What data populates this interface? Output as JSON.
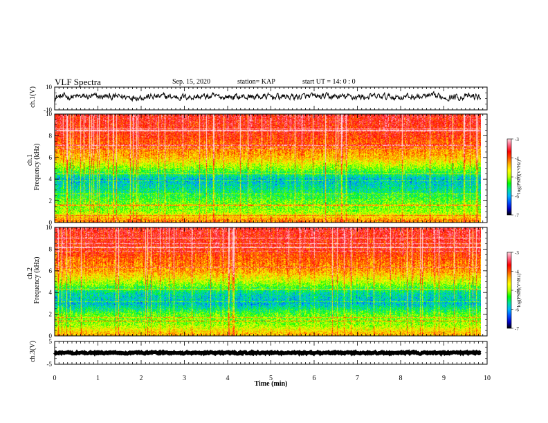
{
  "header": {
    "title": "VLF Spectra",
    "date": "Sep. 15, 2020",
    "station": "station= KAP",
    "start_ut": "start  UT  =   14: 0  : 0"
  },
  "colors": {
    "colormap": [
      "#000000",
      "#0000c8",
      "#0050ff",
      "#00b4ff",
      "#00e0a0",
      "#00ff00",
      "#b4ff00",
      "#ffff00",
      "#ffb400",
      "#ff5000",
      "#ff0000",
      "#ff6080",
      "#ffd8e0"
    ],
    "trace": "#000000"
  },
  "chart_data": [
    {
      "type": "line",
      "name": "ch1-waveform",
      "ylabel": "ch.1(V)",
      "ylim": [
        -10,
        10
      ],
      "yticks": [
        "10",
        "-10"
      ],
      "x_range_min": [
        0,
        9.85
      ],
      "baseline_value": 1.5,
      "fluctuation_amplitude": 5
    },
    {
      "type": "heatmap",
      "name": "ch1-spectrogram",
      "ylabel_channel": "ch.1",
      "ylabel": "Frequency (kHz)",
      "ylim": [
        0,
        10
      ],
      "yticks": [
        "0",
        "2",
        "4",
        "6",
        "8",
        "10"
      ],
      "x_range_min": [
        0,
        9.85
      ],
      "log_psd_by_frequency_khz": [
        [
          0.25,
          -4.2
        ],
        [
          1,
          -5.0
        ],
        [
          2,
          -5.2
        ],
        [
          3,
          -5.6
        ],
        [
          4,
          -5.9
        ],
        [
          5,
          -5.1
        ],
        [
          6,
          -4.4
        ],
        [
          8,
          -3.8
        ],
        [
          10,
          -3.6
        ]
      ],
      "colorbar": {
        "label": "log(PSD)(V²/Hz)",
        "range": [
          -7,
          -3
        ],
        "ticks": [
          "-3",
          "-4",
          "-5",
          "-6",
          "-7"
        ]
      }
    },
    {
      "type": "heatmap",
      "name": "ch2-spectrogram",
      "ylabel_channel": "ch.2",
      "ylabel": "Frequency (kHz)",
      "ylim": [
        0,
        10
      ],
      "yticks": [
        "0",
        "2",
        "4",
        "6",
        "8",
        "10"
      ],
      "x_range_min": [
        0,
        9.85
      ],
      "log_psd_by_frequency_khz": [
        [
          0.25,
          -4.4
        ],
        [
          1,
          -5.0
        ],
        [
          2,
          -5.2
        ],
        [
          3,
          -5.9
        ],
        [
          4,
          -5.7
        ],
        [
          5,
          -4.9
        ],
        [
          6,
          -4.3
        ],
        [
          8,
          -3.8
        ],
        [
          10,
          -3.6
        ]
      ],
      "colorbar": {
        "label": "log(PSD)(V²/Hz)",
        "range": [
          -7,
          -3
        ],
        "ticks": [
          "-3",
          "-4",
          "-5",
          "-6",
          "-7"
        ]
      }
    },
    {
      "type": "line",
      "name": "ch3-waveform",
      "ylabel": "ch.3(V)",
      "ylim": [
        -5,
        5
      ],
      "yticks": [
        "5",
        "-5"
      ],
      "xlabel": "Time  (min)",
      "xlim": [
        0,
        10
      ],
      "xticks": [
        "0",
        "1",
        "2",
        "3",
        "4",
        "5",
        "6",
        "7",
        "8",
        "9",
        "10"
      ],
      "x_range_min": [
        0,
        9.85
      ],
      "baseline_value": 0,
      "fluctuation_amplitude": 0.6
    }
  ]
}
